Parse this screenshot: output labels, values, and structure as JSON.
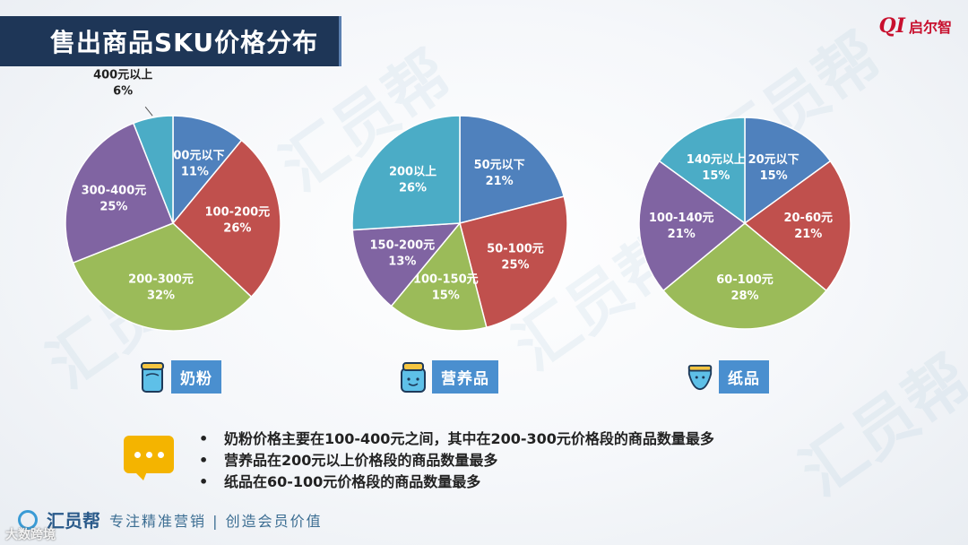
{
  "header": {
    "title": "售出商品SKU价格分布"
  },
  "logo": {
    "mark": "QI",
    "text": "启尔智"
  },
  "watermark_text": "汇员帮",
  "categories": [
    {
      "label": "奶粉",
      "icon": "milk-can-icon"
    },
    {
      "label": "营养品",
      "icon": "nutrition-jar-icon"
    },
    {
      "label": "纸品",
      "icon": "diaper-icon"
    }
  ],
  "chart_data": [
    {
      "type": "pie",
      "title": "",
      "slices": [
        {
          "label": "100元以下",
          "value": 11,
          "pct": "11%",
          "color": "#4f81bd"
        },
        {
          "label": "100-200元",
          "value": 26,
          "pct": "26%",
          "color": "#c0504d"
        },
        {
          "label": "200-300元",
          "value": 32,
          "pct": "32%",
          "color": "#9bbb59"
        },
        {
          "label": "300-400元",
          "value": 25,
          "pct": "25%",
          "color": "#8064a2"
        },
        {
          "label": "400元以上",
          "value": 6,
          "pct": "6%",
          "color": "#4bacc6"
        }
      ]
    },
    {
      "type": "pie",
      "title": "",
      "slices": [
        {
          "label": "50元以下",
          "value": 21,
          "pct": "21%",
          "color": "#4f81bd"
        },
        {
          "label": "50-100元",
          "value": 25,
          "pct": "25%",
          "color": "#c0504d"
        },
        {
          "label": "100-150元",
          "value": 15,
          "pct": "15%",
          "color": "#9bbb59"
        },
        {
          "label": "150-200元",
          "value": 13,
          "pct": "13%",
          "color": "#8064a2"
        },
        {
          "label": "200以上",
          "value": 26,
          "pct": "26%",
          "color": "#4bacc6"
        }
      ]
    },
    {
      "type": "pie",
      "title": "",
      "slices": [
        {
          "label": "20元以下",
          "value": 15,
          "pct": "15%",
          "color": "#4f81bd"
        },
        {
          "label": "20-60元",
          "value": 21,
          "pct": "21%",
          "color": "#c0504d"
        },
        {
          "label": "60-100元",
          "value": 28,
          "pct": "28%",
          "color": "#9bbb59"
        },
        {
          "label": "100-140元",
          "value": 21,
          "pct": "21%",
          "color": "#8064a2"
        },
        {
          "label": "140元以上",
          "value": 15,
          "pct": "15%",
          "color": "#4bacc6"
        }
      ]
    }
  ],
  "notes": [
    "奶粉价格主要在100-400元之间，其中在200-300元价格段的商品数量最多",
    "营养品在200元以上价格段的商品数量最多",
    "纸品在60-100元价格段的商品数量最多"
  ],
  "footer": {
    "brand": "汇员帮",
    "slogan": "专注精准营销 | 创造会员价值",
    "corner": "大数跨境"
  }
}
